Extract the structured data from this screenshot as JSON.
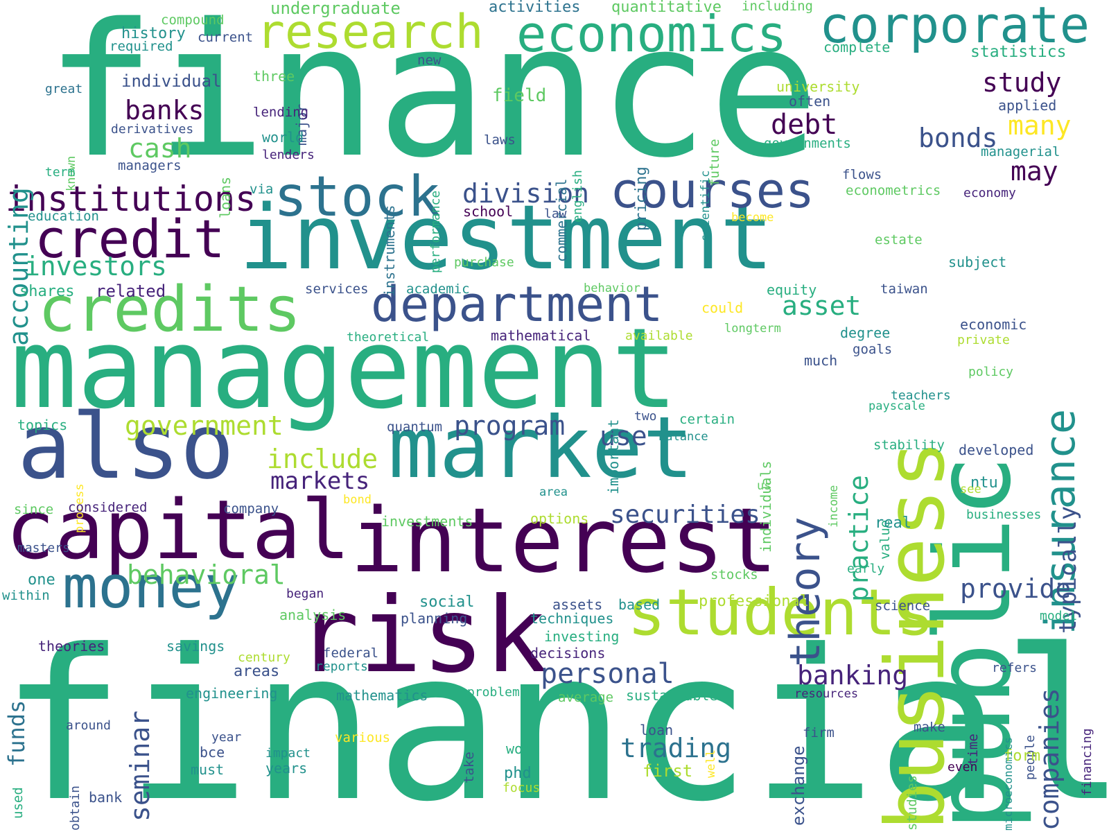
{
  "palette": {
    "deep_purple": "#440154",
    "purple": "#46237a",
    "indigo": "#3b528b",
    "blue": "#2c728e",
    "teal": "#21918c",
    "green": "#28ae80",
    "lightgreen": "#5ec962",
    "lime": "#addc30",
    "yellow": "#fde725"
  },
  "words": [
    {
      "text": "finance",
      "color": "green"
    },
    {
      "text": "financial",
      "color": "green"
    },
    {
      "text": "management",
      "color": "green"
    },
    {
      "text": "investment",
      "color": "teal"
    },
    {
      "text": "interest",
      "color": "deep_purple"
    },
    {
      "text": "public",
      "color": "green"
    },
    {
      "text": "market",
      "color": "teal"
    },
    {
      "text": "risk",
      "color": "deep_purple"
    },
    {
      "text": "also",
      "color": "indigo"
    },
    {
      "text": "business",
      "color": "lime"
    },
    {
      "text": "students",
      "color": "lime"
    },
    {
      "text": "capital",
      "color": "deep_purple"
    },
    {
      "text": "credits",
      "color": "lightgreen"
    },
    {
      "text": "money",
      "color": "blue"
    },
    {
      "text": "economics",
      "color": "green"
    },
    {
      "text": "research",
      "color": "lime"
    },
    {
      "text": "corporate",
      "color": "teal"
    },
    {
      "text": "stock",
      "color": "blue"
    },
    {
      "text": "courses",
      "color": "indigo"
    },
    {
      "text": "department",
      "color": "indigo"
    },
    {
      "text": "credit",
      "color": "deep_purple"
    },
    {
      "text": "insurance",
      "color": "teal"
    },
    {
      "text": "theory",
      "color": "indigo"
    },
    {
      "text": "institutions",
      "color": "deep_purple"
    },
    {
      "text": "investors",
      "color": "green"
    },
    {
      "text": "accounting",
      "color": "teal"
    },
    {
      "text": "banks",
      "color": "deep_purple"
    },
    {
      "text": "cash",
      "color": "lightgreen"
    },
    {
      "text": "division",
      "color": "indigo"
    },
    {
      "text": "debt",
      "color": "deep_purple"
    },
    {
      "text": "bonds",
      "color": "indigo"
    },
    {
      "text": "study",
      "color": "deep_purple"
    },
    {
      "text": "many",
      "color": "yellow"
    },
    {
      "text": "may",
      "color": "deep_purple"
    },
    {
      "text": "asset",
      "color": "green"
    },
    {
      "text": "practice",
      "color": "green"
    },
    {
      "text": "typically",
      "color": "indigo"
    },
    {
      "text": "program",
      "color": "indigo"
    },
    {
      "text": "government",
      "color": "lime"
    },
    {
      "text": "include",
      "color": "lime"
    },
    {
      "text": "markets",
      "color": "purple"
    },
    {
      "text": "use",
      "color": "indigo"
    },
    {
      "text": "securities",
      "color": "indigo"
    },
    {
      "text": "behavioral",
      "color": "lightgreen"
    },
    {
      "text": "seminar",
      "color": "indigo"
    },
    {
      "text": "personal",
      "color": "indigo"
    },
    {
      "text": "banking",
      "color": "purple"
    },
    {
      "text": "provide",
      "color": "indigo"
    },
    {
      "text": "companies",
      "color": "indigo"
    },
    {
      "text": "trading",
      "color": "blue"
    },
    {
      "text": "funds",
      "color": "blue"
    },
    {
      "text": "undergraduate",
      "color": "lightgreen"
    },
    {
      "text": "activities",
      "color": "blue"
    },
    {
      "text": "quantitative",
      "color": "lightgreen"
    },
    {
      "text": "including",
      "color": "lightgreen"
    },
    {
      "text": "compound",
      "color": "lightgreen"
    },
    {
      "text": "history",
      "color": "teal"
    },
    {
      "text": "current",
      "color": "indigo"
    },
    {
      "text": "required",
      "color": "teal"
    },
    {
      "text": "new",
      "color": "indigo"
    },
    {
      "text": "individual",
      "color": "indigo"
    },
    {
      "text": "three",
      "color": "lightgreen"
    },
    {
      "text": "major",
      "color": "indigo"
    },
    {
      "text": "great",
      "color": "blue"
    },
    {
      "text": "lending",
      "color": "purple"
    },
    {
      "text": "derivatives",
      "color": "indigo"
    },
    {
      "text": "loans",
      "color": "lightgreen"
    },
    {
      "text": "world",
      "color": "teal"
    },
    {
      "text": "lenders",
      "color": "purple"
    },
    {
      "text": "known",
      "color": "lightgreen"
    },
    {
      "text": "term",
      "color": "green"
    },
    {
      "text": "managers",
      "color": "indigo"
    },
    {
      "text": "instruments",
      "color": "blue"
    },
    {
      "text": "performance",
      "color": "green"
    },
    {
      "text": "laws",
      "color": "indigo"
    },
    {
      "text": "commercial",
      "color": "blue"
    },
    {
      "text": "english",
      "color": "green"
    },
    {
      "text": "pricing",
      "color": "blue"
    },
    {
      "text": "scientific",
      "color": "teal"
    },
    {
      "text": "future",
      "color": "lightgreen"
    },
    {
      "text": "field",
      "color": "lightgreen"
    },
    {
      "text": "complete",
      "color": "green"
    },
    {
      "text": "statistics",
      "color": "green"
    },
    {
      "text": "university",
      "color": "lime"
    },
    {
      "text": "often",
      "color": "indigo"
    },
    {
      "text": "applied",
      "color": "indigo"
    },
    {
      "text": "governments",
      "color": "green"
    },
    {
      "text": "managerial",
      "color": "teal"
    },
    {
      "text": "flows",
      "color": "indigo"
    },
    {
      "text": "econometrics",
      "color": "lightgreen"
    },
    {
      "text": "economy",
      "color": "purple"
    },
    {
      "text": "via",
      "color": "teal"
    },
    {
      "text": "school",
      "color": "deep_purple"
    },
    {
      "text": "law",
      "color": "indigo"
    },
    {
      "text": "education",
      "color": "teal"
    },
    {
      "text": "become",
      "color": "yellow"
    },
    {
      "text": "estate",
      "color": "lightgreen"
    },
    {
      "text": "purchase",
      "color": "lightgreen"
    },
    {
      "text": "subject",
      "color": "teal"
    },
    {
      "text": "related",
      "color": "purple"
    },
    {
      "text": "shares",
      "color": "green"
    },
    {
      "text": "services",
      "color": "indigo"
    },
    {
      "text": "academic",
      "color": "teal"
    },
    {
      "text": "behavior",
      "color": "lightgreen"
    },
    {
      "text": "equity",
      "color": "green"
    },
    {
      "text": "taiwan",
      "color": "indigo"
    },
    {
      "text": "could",
      "color": "yellow"
    },
    {
      "text": "longterm",
      "color": "lightgreen"
    },
    {
      "text": "economic",
      "color": "indigo"
    },
    {
      "text": "theoretical",
      "color": "green"
    },
    {
      "text": "mathematical",
      "color": "purple"
    },
    {
      "text": "available",
      "color": "lime"
    },
    {
      "text": "degree",
      "color": "teal"
    },
    {
      "text": "goals",
      "color": "indigo"
    },
    {
      "text": "private",
      "color": "lime"
    },
    {
      "text": "important",
      "color": "teal"
    },
    {
      "text": "individuals",
      "color": "lightgreen"
    },
    {
      "text": "much",
      "color": "indigo"
    },
    {
      "text": "policy",
      "color": "lightgreen"
    },
    {
      "text": "teachers",
      "color": "teal"
    },
    {
      "text": "payscale",
      "color": "green"
    },
    {
      "text": "topics",
      "color": "green"
    },
    {
      "text": "quantum",
      "color": "indigo"
    },
    {
      "text": "two",
      "color": "indigo"
    },
    {
      "text": "certain",
      "color": "green"
    },
    {
      "text": "balance",
      "color": "teal"
    },
    {
      "text": "stability",
      "color": "green"
    },
    {
      "text": "developed",
      "color": "indigo"
    },
    {
      "text": "process",
      "color": "yellow"
    },
    {
      "text": "income",
      "color": "lightgreen"
    },
    {
      "text": "value",
      "color": "green"
    },
    {
      "text": "ntu",
      "color": "teal"
    },
    {
      "text": "considered",
      "color": "purple"
    },
    {
      "text": "since",
      "color": "lightgreen"
    },
    {
      "text": "company",
      "color": "indigo"
    },
    {
      "text": "bond",
      "color": "yellow"
    },
    {
      "text": "area",
      "color": "teal"
    },
    {
      "text": "us",
      "color": "lightgreen"
    },
    {
      "text": "see",
      "color": "lime"
    },
    {
      "text": "investments",
      "color": "lightgreen"
    },
    {
      "text": "options",
      "color": "lime"
    },
    {
      "text": "real",
      "color": "teal"
    },
    {
      "text": "businesses",
      "color": "green"
    },
    {
      "text": "masters",
      "color": "indigo"
    },
    {
      "text": "one",
      "color": "teal"
    },
    {
      "text": "within",
      "color": "teal"
    },
    {
      "text": "began",
      "color": "purple"
    },
    {
      "text": "stocks",
      "color": "lightgreen"
    },
    {
      "text": "early",
      "color": "green"
    },
    {
      "text": "social",
      "color": "teal"
    },
    {
      "text": "assets",
      "color": "indigo"
    },
    {
      "text": "based",
      "color": "teal"
    },
    {
      "text": "professional",
      "color": "lime"
    },
    {
      "text": "planning",
      "color": "indigo"
    },
    {
      "text": "science",
      "color": "indigo"
    },
    {
      "text": "analysis",
      "color": "lightgreen"
    },
    {
      "text": "techniques",
      "color": "teal"
    },
    {
      "text": "model",
      "color": "green"
    },
    {
      "text": "investing",
      "color": "green"
    },
    {
      "text": "theories",
      "color": "purple"
    },
    {
      "text": "savings",
      "color": "teal"
    },
    {
      "text": "decisions",
      "color": "purple"
    },
    {
      "text": "century",
      "color": "lime"
    },
    {
      "text": "federal",
      "color": "indigo"
    },
    {
      "text": "reports",
      "color": "teal"
    },
    {
      "text": "areas",
      "color": "indigo"
    },
    {
      "text": "refers",
      "color": "indigo"
    },
    {
      "text": "engineering",
      "color": "teal"
    },
    {
      "text": "mathematics",
      "color": "teal"
    },
    {
      "text": "problems",
      "color": "green"
    },
    {
      "text": "average",
      "color": "lightgreen"
    },
    {
      "text": "sustainable",
      "color": "green"
    },
    {
      "text": "exchange",
      "color": "indigo"
    },
    {
      "text": "resources",
      "color": "purple"
    },
    {
      "text": "time",
      "color": "purple"
    },
    {
      "text": "financing",
      "color": "purple"
    },
    {
      "text": "around",
      "color": "indigo"
    },
    {
      "text": "year",
      "color": "indigo"
    },
    {
      "text": "bce",
      "color": "indigo"
    },
    {
      "text": "must",
      "color": "teal"
    },
    {
      "text": "impact",
      "color": "teal"
    },
    {
      "text": "years",
      "color": "teal"
    },
    {
      "text": "various",
      "color": "yellow"
    },
    {
      "text": "take",
      "color": "indigo"
    },
    {
      "text": "loan",
      "color": "indigo"
    },
    {
      "text": "well",
      "color": "yellow"
    },
    {
      "text": "firm",
      "color": "indigo"
    },
    {
      "text": "make",
      "color": "indigo"
    },
    {
      "text": "microeconomics",
      "color": "teal"
    },
    {
      "text": "people",
      "color": "indigo"
    },
    {
      "text": "work",
      "color": "green"
    },
    {
      "text": "first",
      "color": "lime"
    },
    {
      "text": "form",
      "color": "lime"
    },
    {
      "text": "even",
      "color": "deep_purple"
    },
    {
      "text": "used",
      "color": "green"
    },
    {
      "text": "obtain",
      "color": "indigo"
    },
    {
      "text": "phd",
      "color": "teal"
    },
    {
      "text": "focus",
      "color": "lime"
    },
    {
      "text": "studies",
      "color": "lightgreen"
    },
    {
      "text": "bank",
      "color": "indigo"
    }
  ]
}
